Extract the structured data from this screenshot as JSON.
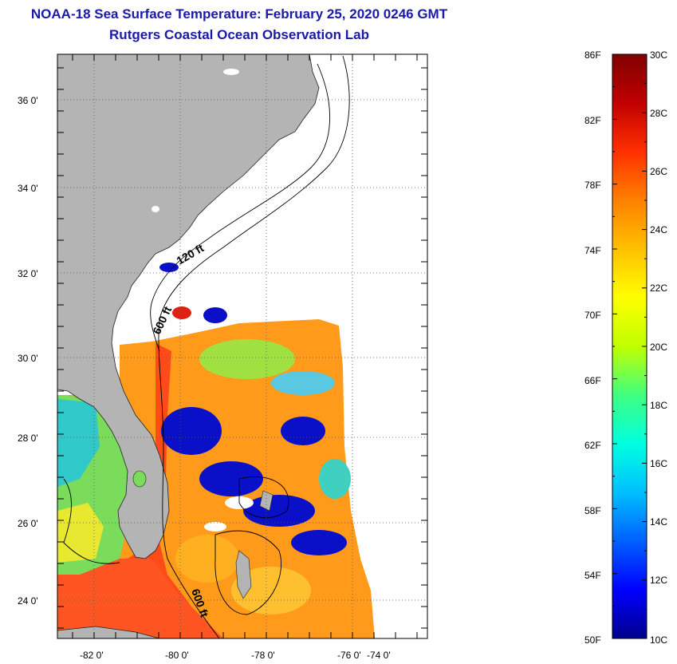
{
  "header": {
    "title": "NOAA-18 Sea Surface Temperature:  February 25, 2020 0246 GMT",
    "subtitle": "Rutgers Coastal Ocean Observation Lab"
  },
  "map": {
    "lat_labels": [
      "36 0'",
      "34 0'",
      "32 0'",
      "30 0'",
      "28 0'",
      "26 0'",
      "24 0'"
    ],
    "lon_labels": [
      "-82 0'",
      "-80 0'",
      "-78 0'",
      "-76 0'",
      "-74 0'"
    ],
    "contour_labels": [
      "120 ft",
      "600 ft",
      "600 ft"
    ],
    "colors": {
      "land": "#b4b4b4",
      "cloud": "#ffffff",
      "warm": "#ff4a1a",
      "orange": "#ff9a1a",
      "cold": "#0a10c8"
    }
  },
  "colorbar": {
    "fahrenheit_labels": [
      "86F",
      "82F",
      "78F",
      "74F",
      "70F",
      "66F",
      "62F",
      "58F",
      "54F",
      "50F"
    ],
    "celsius_labels": [
      "30C",
      "28C",
      "26C",
      "24C",
      "22C",
      "20C",
      "18C",
      "16C",
      "14C",
      "12C",
      "10C"
    ],
    "stops": [
      "#00008b",
      "#0000ff",
      "#0060ff",
      "#00bfff",
      "#00ffe0",
      "#40ff80",
      "#c0ff00",
      "#ffff00",
      "#ffc000",
      "#ff8000",
      "#ff3000",
      "#c00000",
      "#800000"
    ]
  }
}
